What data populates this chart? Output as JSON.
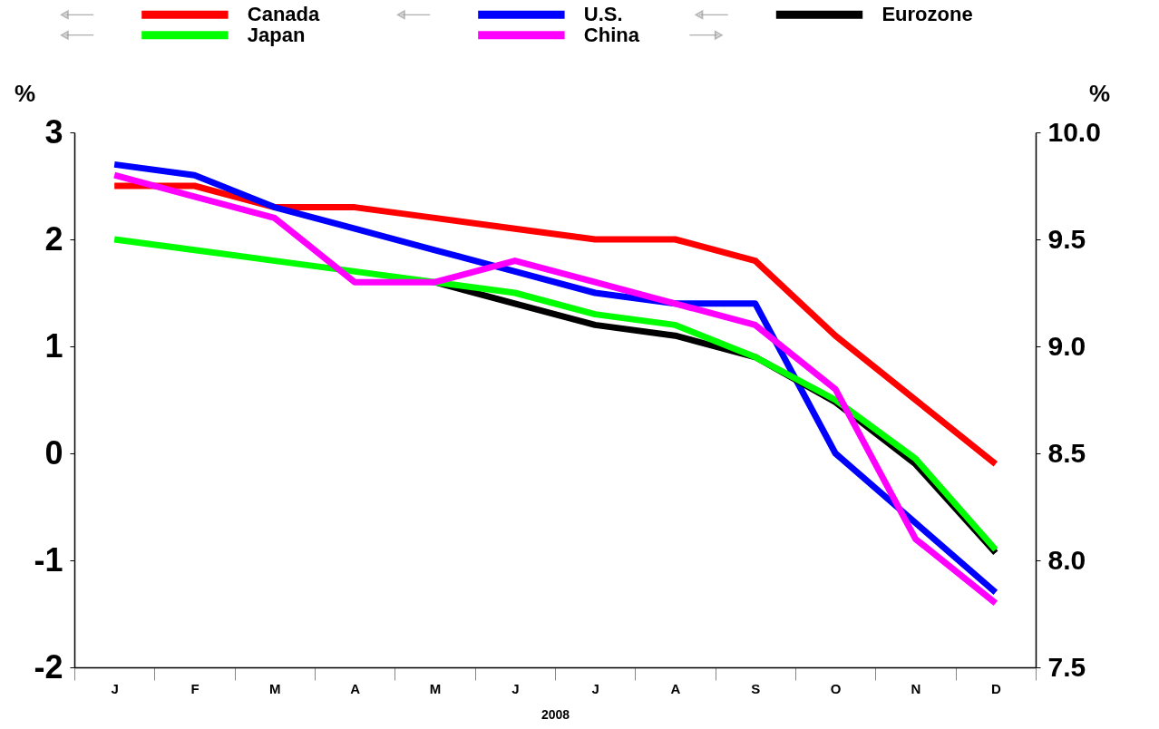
{
  "chart_data": {
    "type": "line",
    "xlabel": "2008",
    "ylabel": "%",
    "y2label": "%",
    "categories": [
      "J",
      "F",
      "M",
      "A",
      "M",
      "J",
      "J",
      "A",
      "S",
      "O",
      "N",
      "D"
    ],
    "series": [
      {
        "name": "Canada",
        "color": "#ff0000",
        "values": [
          2.5,
          2.5,
          2.3,
          2.3,
          2.2,
          2.1,
          2.0,
          2.0,
          1.8,
          1.1,
          0.5,
          -0.1
        ]
      },
      {
        "name": "U.S.",
        "color": "#0000ff",
        "values": [
          2.7,
          2.6,
          2.3,
          2.1,
          1.9,
          1.7,
          1.5,
          1.4,
          1.4,
          0.0,
          -0.65,
          -1.3
        ]
      },
      {
        "name": "Eurozone",
        "color": "#000000",
        "values": [
          null,
          null,
          null,
          null,
          1.6,
          1.4,
          1.2,
          1.1,
          0.9,
          0.48,
          -0.1,
          -0.93
        ]
      },
      {
        "name": "Japan",
        "color": "#00ff00",
        "values": [
          2.0,
          1.9,
          1.8,
          1.7,
          1.6,
          1.5,
          1.3,
          1.2,
          0.9,
          0.5,
          -0.05,
          -0.9
        ]
      },
      {
        "name": "China",
        "color": "#ff00ff",
        "axis": "y2",
        "values": [
          9.8,
          9.7,
          9.6,
          9.3,
          9.3,
          9.4,
          9.3,
          9.2,
          9.1,
          8.8,
          8.1,
          7.8
        ]
      }
    ],
    "ylim": [
      -2,
      3
    ],
    "yticks": [
      -2,
      -1,
      0,
      1,
      2,
      3
    ],
    "y2lim": [
      7.5,
      10
    ],
    "y2ticks": [
      {
        "value": 7.5,
        "label": "7.5"
      },
      {
        "value": 8,
        "label": "8.0"
      },
      {
        "value": 8.5,
        "label": "8.5"
      },
      {
        "value": 9,
        "label": "9.0"
      },
      {
        "value": 9.5,
        "label": "9.5"
      },
      {
        "value": 10,
        "label": "10.0"
      }
    ],
    "grid": false,
    "legend": "top",
    "marker": "none",
    "line_style": "solid"
  }
}
